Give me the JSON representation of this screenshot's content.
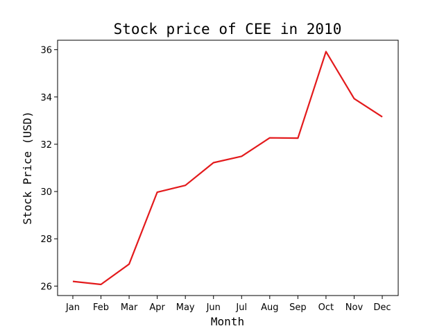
{
  "chart_data": {
    "type": "line",
    "title": "Stock price of CEE in 2010",
    "xlabel": "Month",
    "ylabel": "Stock Price (USD)",
    "categories": [
      "Jan",
      "Feb",
      "Mar",
      "Apr",
      "May",
      "Jun",
      "Jul",
      "Aug",
      "Sep",
      "Oct",
      "Nov",
      "Dec"
    ],
    "series": [
      {
        "color": "#e31a1c",
        "values": [
          26.2,
          26.07,
          26.93,
          29.97,
          30.26,
          31.22,
          31.49,
          32.27,
          32.26,
          35.92,
          33.93,
          33.16
        ]
      }
    ],
    "ylim": [
      25.6,
      36.4
    ],
    "yticks": [
      26,
      28,
      30,
      32,
      34,
      36
    ],
    "grid": false
  }
}
